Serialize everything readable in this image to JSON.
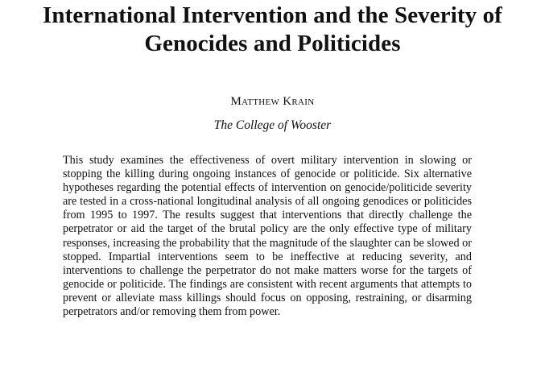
{
  "paper": {
    "title": "International Intervention and the Severity of Genocides and Politicides",
    "author": "Matthew Krain",
    "affiliation": "The College of Wooster",
    "abstract": "This study examines the effectiveness of overt military intervention in slowing or stopping the killing during ongoing instances of genocide or politicide. Six alternative hypotheses regarding the potential effects of intervention on genocide/politicide severity are tested in a cross-national longitudinal analysis of all ongoing genodices or politicides from 1995 to 1997. The results suggest that interventions that directly challenge the perpetrator or aid the target of the brutal policy are the only effective type of military responses, increasing the probability that the magnitude of the slaughter can be slowed or stopped. Impartial interventions seem to be ineffective at reducing severity, and interventions to challenge the perpetrator do not make matters worse for the targets of genocide or politicide. The findings are consistent with recent arguments that attempts to prevent or alleviate mass killings should focus on opposing, restraining, or disarming perpetrators and/or removing them from power."
  }
}
